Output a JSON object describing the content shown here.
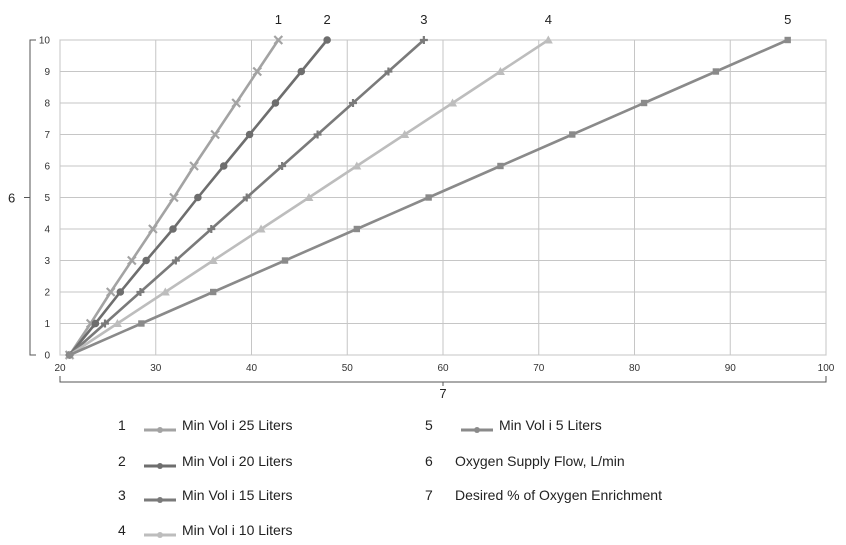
{
  "chart_data": {
    "type": "line",
    "title": "",
    "xlabel_callout": "7",
    "ylabel_callout": "6",
    "xlim": [
      20,
      100
    ],
    "ylim": [
      0,
      10
    ],
    "x_ticks": [
      20,
      30,
      40,
      50,
      60,
      70,
      80,
      90,
      100
    ],
    "y_ticks": [
      0,
      1,
      2,
      3,
      4,
      5,
      6,
      7,
      8,
      9,
      10
    ],
    "grid": true,
    "series": [
      {
        "name": "1",
        "color": "#a3a3a3",
        "marker": "x",
        "x": [
          21,
          23.2,
          25.3,
          27.5,
          29.7,
          31.9,
          34.0,
          36.2,
          38.4,
          40.6,
          42.8
        ],
        "y": [
          0,
          1,
          2,
          3,
          4,
          5,
          6,
          7,
          8,
          9,
          10
        ]
      },
      {
        "name": "2",
        "color": "#6e6e6e",
        "marker": "circle",
        "x": [
          21,
          23.7,
          26.3,
          29.0,
          31.8,
          34.4,
          37.1,
          39.8,
          42.5,
          45.2,
          47.9
        ],
        "y": [
          0,
          1,
          2,
          3,
          4,
          5,
          6,
          7,
          8,
          9,
          10
        ]
      },
      {
        "name": "3",
        "color": "#7a7a7a",
        "marker": "plus",
        "x": [
          21,
          24.7,
          28.4,
          32.1,
          35.8,
          39.5,
          43.2,
          46.9,
          50.6,
          54.3,
          58.0
        ],
        "y": [
          0,
          1,
          2,
          3,
          4,
          5,
          6,
          7,
          8,
          9,
          10
        ]
      },
      {
        "name": "4",
        "color": "#bdbdbd",
        "marker": "triangle",
        "x": [
          21,
          26.0,
          31.0,
          36.0,
          41.0,
          46.0,
          51.0,
          56.0,
          61.0,
          66.0,
          71.0
        ],
        "y": [
          0,
          1,
          2,
          3,
          4,
          5,
          6,
          7,
          8,
          9,
          10
        ]
      },
      {
        "name": "5",
        "color": "#8a8a8a",
        "marker": "square",
        "x": [
          21,
          28.5,
          36.0,
          43.5,
          51.0,
          58.5,
          66.0,
          73.5,
          81.0,
          88.5,
          96.0
        ],
        "y": [
          0,
          1,
          2,
          3,
          4,
          5,
          6,
          7,
          8,
          9,
          10
        ]
      }
    ]
  },
  "legend": {
    "items": [
      {
        "num": "1",
        "label": "Min Vol i 25 Liters",
        "color": "#a3a3a3"
      },
      {
        "num": "2",
        "label": "Min Vol i 20 Liters",
        "color": "#6e6e6e"
      },
      {
        "num": "3",
        "label": "Min Vol i 15 Liters",
        "color": "#7a7a7a"
      },
      {
        "num": "4",
        "label": "Min Vol i 10 Liters",
        "color": "#bdbdbd"
      },
      {
        "num": "5",
        "label": "Min Vol i 5 Liters",
        "color": "#8a8a8a"
      },
      {
        "num": "6",
        "label": "Oxygen Supply Flow, L/min"
      },
      {
        "num": "7",
        "label": "Desired % of Oxygen Enrichment"
      }
    ]
  }
}
